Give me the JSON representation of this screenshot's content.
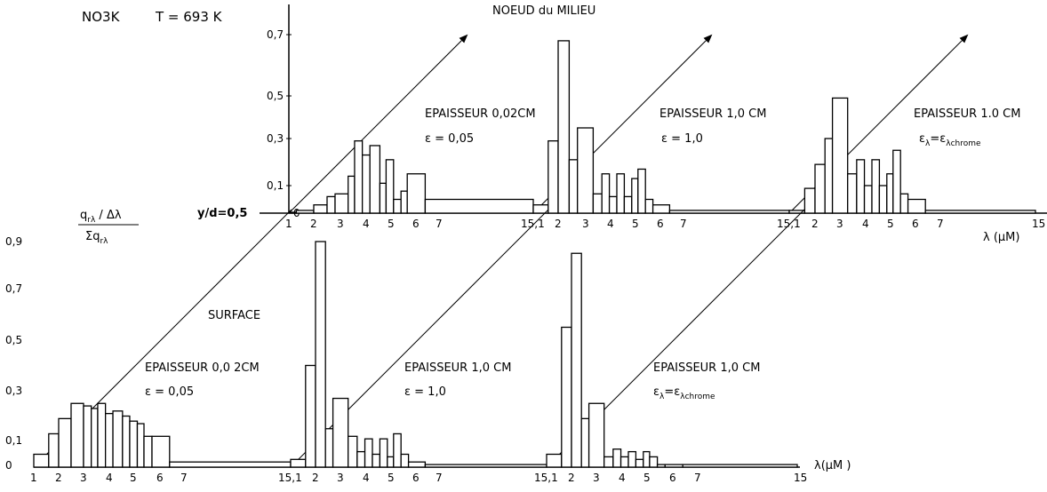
{
  "figure": {
    "compound": "NO3K",
    "temperature": "T = 693 K",
    "ylabel_num": "q",
    "ylabel_num_sub": "rλ",
    "ylabel_num_rest": " / Δλ",
    "ylabel_den": "Σq",
    "ylabel_den_sub": "rλ",
    "y_position_label": "y/d=0,5",
    "xlabel_upper": "λ (µM)",
    "xlabel_lower": "λ(µM )"
  },
  "chart_data": [
    {
      "type": "bar",
      "title": "NOEUD du MILIEU",
      "panel": "upper-left",
      "annotation": [
        "EPAISSEUR  0,02CM",
        "ε = 0,05"
      ],
      "xlabel": "",
      "xlim": [
        1,
        15
      ],
      "x_ticks": [
        "1",
        "2",
        "3",
        "4",
        "5",
        "6",
        "7"
      ],
      "y_ticks": [
        "0",
        "0,1",
        "0,3",
        "0,5",
        "0,7"
      ],
      "ylim": [
        0,
        0.75
      ],
      "bins": [
        [
          1.0,
          1.3,
          0.0
        ],
        [
          1.3,
          2.0,
          0.01
        ],
        [
          2.0,
          2.5,
          0.03
        ],
        [
          2.5,
          2.8,
          0.06
        ],
        [
          2.8,
          3.3,
          0.07
        ],
        [
          3.3,
          3.55,
          0.14
        ],
        [
          3.55,
          3.85,
          0.29
        ],
        [
          3.85,
          4.15,
          0.23
        ],
        [
          4.15,
          4.55,
          0.27
        ],
        [
          4.55,
          4.8,
          0.11
        ],
        [
          4.8,
          5.1,
          0.21
        ],
        [
          5.1,
          5.4,
          0.05
        ],
        [
          5.4,
          5.65,
          0.08
        ],
        [
          5.65,
          6.4,
          0.15
        ],
        [
          6.4,
          15.0,
          0.05
        ]
      ]
    },
    {
      "type": "bar",
      "panel": "upper-middle",
      "annotation": [
        "EPAISSEUR  1,0 CM",
        "ε = 1,0"
      ],
      "xlim": [
        1,
        15
      ],
      "x_ticks": [
        "15,1",
        "2",
        "3",
        "4",
        "5",
        "6",
        "7"
      ],
      "ylim": [
        0,
        0.75
      ],
      "bins": [
        [
          1.0,
          1.6,
          0.03
        ],
        [
          1.6,
          2.0,
          0.29
        ],
        [
          2.0,
          2.4,
          0.68
        ],
        [
          2.4,
          2.7,
          0.21
        ],
        [
          2.7,
          3.3,
          0.35
        ],
        [
          3.3,
          3.65,
          0.07
        ],
        [
          3.65,
          3.95,
          0.15
        ],
        [
          3.95,
          4.25,
          0.06
        ],
        [
          4.25,
          4.55,
          0.15
        ],
        [
          4.55,
          4.85,
          0.06
        ],
        [
          4.85,
          5.1,
          0.13
        ],
        [
          5.1,
          5.4,
          0.17
        ],
        [
          5.4,
          5.7,
          0.05
        ],
        [
          5.7,
          6.4,
          0.03
        ],
        [
          6.4,
          15.0,
          0.01
        ]
      ]
    },
    {
      "type": "bar",
      "panel": "upper-right",
      "annotation": [
        "EPAISSEUR  1.0 CM",
        "ε",
        "λ",
        "=ε",
        "λchrome"
      ],
      "xlim": [
        1,
        15
      ],
      "x_ticks": [
        "15,1",
        "2",
        "3",
        "4",
        "5",
        "6",
        "7",
        "15"
      ],
      "ylim": [
        0,
        0.75
      ],
      "bins": [
        [
          1.0,
          1.6,
          0.01
        ],
        [
          1.6,
          2.0,
          0.09
        ],
        [
          2.0,
          2.4,
          0.19
        ],
        [
          2.4,
          2.7,
          0.3
        ],
        [
          2.7,
          3.3,
          0.49
        ],
        [
          3.3,
          3.65,
          0.15
        ],
        [
          3.65,
          3.95,
          0.21
        ],
        [
          3.95,
          4.25,
          0.1
        ],
        [
          4.25,
          4.55,
          0.21
        ],
        [
          4.55,
          4.85,
          0.1
        ],
        [
          4.85,
          5.1,
          0.15
        ],
        [
          5.1,
          5.4,
          0.25
        ],
        [
          5.4,
          5.7,
          0.07
        ],
        [
          5.7,
          6.4,
          0.05
        ],
        [
          6.4,
          15.0,
          0.01
        ]
      ]
    },
    {
      "type": "bar",
      "title": "SURFACE",
      "panel": "lower-left",
      "annotation": [
        "EPAISSEUR  0,0 2CM",
        "ε = 0,05"
      ],
      "xlim": [
        1,
        15
      ],
      "x_ticks": [
        "1",
        "2",
        "3",
        "4",
        "5",
        "6",
        "7"
      ],
      "y_ticks": [
        "0",
        "0,1",
        "0,3",
        "0,5",
        "0,7",
        "0,9"
      ],
      "ylim": [
        0,
        0.95
      ],
      "bins": [
        [
          1.0,
          1.6,
          0.05
        ],
        [
          1.6,
          2.0,
          0.13
        ],
        [
          2.0,
          2.5,
          0.19
        ],
        [
          2.5,
          3.0,
          0.25
        ],
        [
          3.0,
          3.3,
          0.24
        ],
        [
          3.3,
          3.55,
          0.23
        ],
        [
          3.55,
          3.85,
          0.25
        ],
        [
          3.85,
          4.15,
          0.21
        ],
        [
          4.15,
          4.55,
          0.22
        ],
        [
          4.55,
          4.85,
          0.2
        ],
        [
          4.85,
          5.15,
          0.18
        ],
        [
          5.15,
          5.4,
          0.17
        ],
        [
          5.4,
          5.7,
          0.12
        ],
        [
          5.7,
          6.4,
          0.12
        ],
        [
          6.4,
          15.0,
          0.02
        ]
      ]
    },
    {
      "type": "bar",
      "panel": "lower-middle",
      "annotation": [
        "EPAISSEUR  1,0 CM",
        "ε = 1,0"
      ],
      "xlim": [
        1,
        15
      ],
      "x_ticks": [
        "15,1",
        "2",
        "3",
        "4",
        "5",
        "6",
        "7"
      ],
      "ylim": [
        0,
        0.95
      ],
      "bins": [
        [
          1.0,
          1.6,
          0.03
        ],
        [
          1.6,
          2.0,
          0.4
        ],
        [
          2.0,
          2.4,
          0.9
        ],
        [
          2.4,
          2.7,
          0.15
        ],
        [
          2.7,
          3.3,
          0.27
        ],
        [
          3.3,
          3.65,
          0.12
        ],
        [
          3.65,
          3.95,
          0.06
        ],
        [
          3.95,
          4.25,
          0.11
        ],
        [
          4.25,
          4.55,
          0.05
        ],
        [
          4.55,
          4.85,
          0.11
        ],
        [
          4.85,
          5.1,
          0.04
        ],
        [
          5.1,
          5.4,
          0.13
        ],
        [
          5.4,
          5.7,
          0.05
        ],
        [
          5.7,
          6.4,
          0.02
        ],
        [
          6.4,
          15.0,
          0.01
        ]
      ]
    },
    {
      "type": "bar",
      "panel": "lower-right",
      "annotation": [
        "EPAISSEUR  1,0 CM",
        "ε",
        "λ",
        "=ε",
        "λchrome"
      ],
      "xlim": [
        1,
        15
      ],
      "x_ticks": [
        "15,1",
        "2",
        "3",
        "4",
        "5",
        "6",
        "7",
        "15"
      ],
      "ylim": [
        0,
        0.95
      ],
      "bins": [
        [
          1.0,
          1.6,
          0.05
        ],
        [
          1.6,
          2.0,
          0.55
        ],
        [
          2.0,
          2.4,
          0.85
        ],
        [
          2.4,
          2.7,
          0.19
        ],
        [
          2.7,
          3.3,
          0.25
        ],
        [
          3.3,
          3.65,
          0.04
        ],
        [
          3.65,
          3.95,
          0.07
        ],
        [
          3.95,
          4.25,
          0.04
        ],
        [
          4.25,
          4.55,
          0.06
        ],
        [
          4.55,
          4.85,
          0.03
        ],
        [
          4.85,
          5.1,
          0.06
        ],
        [
          5.1,
          5.4,
          0.04
        ],
        [
          5.4,
          5.7,
          0.01
        ],
        [
          5.7,
          6.4,
          0.01
        ],
        [
          6.4,
          15.0,
          0.01
        ]
      ]
    }
  ]
}
